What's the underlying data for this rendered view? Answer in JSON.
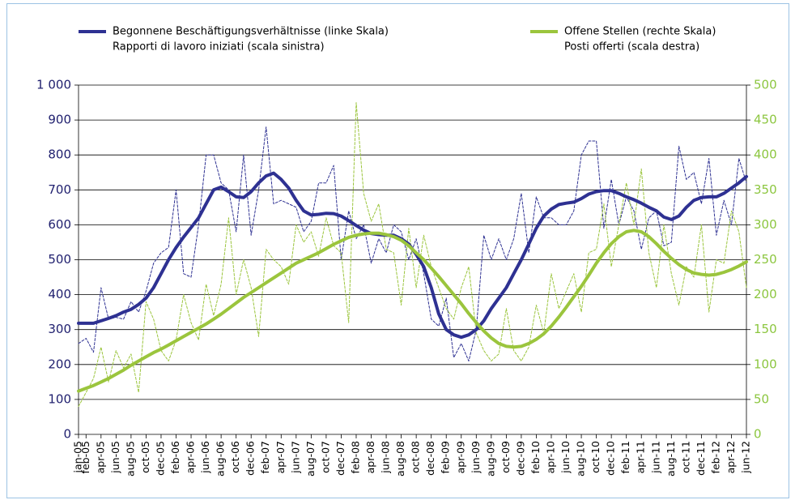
{
  "chart_data": {
    "type": "line",
    "categories": [
      "jan-05",
      "feb-05",
      null,
      "apr-05",
      null,
      "jun-05",
      null,
      "aug-05",
      null,
      "oct-05",
      null,
      "dec-05",
      null,
      "feb-06",
      null,
      "apr-06",
      null,
      "jun-06",
      null,
      "aug-06",
      null,
      "oct-06",
      null,
      "dec-06",
      null,
      "feb-07",
      null,
      "apr-07",
      null,
      "jun-07",
      null,
      "aug-07",
      null,
      "oct-07",
      null,
      "dec-07",
      null,
      "feb-08",
      null,
      "apr-08",
      null,
      "jun-08",
      null,
      "aug-08",
      null,
      "oct-08",
      null,
      "dec-08",
      null,
      "feb-09",
      null,
      "apr-09",
      null,
      "jun-09",
      null,
      "aug-09",
      null,
      "oct-09",
      null,
      "dec-09",
      null,
      "feb-10",
      null,
      "apr-10",
      null,
      "jun-10",
      null,
      "aug-10",
      null,
      "oct-10",
      null,
      "dec-10",
      null,
      "feb-11",
      null,
      "apr-11",
      null,
      "jun-11",
      null,
      "aug-11",
      null,
      "oct-11",
      null,
      "dec-11",
      null,
      "feb-12",
      null,
      "apr-12",
      null,
      "jun-12"
    ],
    "series": [
      {
        "name": [
          "Begonnene Beschäftigungsverhältnisse (linke Skala)",
          "Rapporti di lavoro iniziati (scala sinistra)"
        ],
        "color": "#2e3192",
        "axis": "y",
        "dashed": false,
        "values": [
          318,
          318,
          318,
          325,
          332,
          340,
          350,
          358,
          372,
          390,
          420,
          460,
          500,
          535,
          565,
          592,
          620,
          660,
          700,
          708,
          695,
          680,
          678,
          695,
          720,
          740,
          748,
          730,
          705,
          670,
          640,
          628,
          630,
          633,
          632,
          625,
          612,
          598,
          585,
          575,
          572,
          570,
          570,
          560,
          545,
          515,
          480,
          420,
          345,
          300,
          285,
          278,
          285,
          300,
          325,
          360,
          390,
          420,
          460,
          500,
          545,
          590,
          625,
          645,
          658,
          662,
          665,
          675,
          688,
          695,
          698,
          698,
          690,
          680,
          672,
          662,
          650,
          640,
          622,
          615,
          625,
          650,
          670,
          678,
          680,
          680,
          690,
          705,
          720,
          738
        ]
      },
      {
        "color": "#2e3192",
        "axis": "y",
        "dashed": true,
        "values": [
          260,
          275,
          235,
          420,
          330,
          335,
          330,
          380,
          350,
          410,
          490,
          520,
          535,
          700,
          460,
          450,
          600,
          800,
          800,
          720,
          700,
          580,
          800,
          570,
          700,
          880,
          660,
          670,
          660,
          650,
          580,
          610,
          720,
          720,
          770,
          500,
          640,
          560,
          600,
          490,
          560,
          520,
          600,
          580,
          500,
          560,
          460,
          330,
          310,
          390,
          220,
          260,
          210,
          300,
          570,
          500,
          560,
          500,
          560,
          690,
          520,
          680,
          620,
          620,
          600,
          600,
          640,
          800,
          840,
          840,
          590,
          730,
          600,
          680,
          640,
          530,
          620,
          640,
          540,
          550,
          825,
          730,
          750,
          660,
          790,
          570,
          670,
          600,
          790,
          720
        ]
      },
      {
        "name": [
          "Offene Stellen (rechte Skala)",
          "Posti offerti (scala destra)"
        ],
        "color": "#9bc53d",
        "axis": "y2",
        "dashed": false,
        "values": [
          62,
          66,
          70,
          75,
          80,
          86,
          92,
          99,
          105,
          111,
          117,
          122,
          128,
          134,
          140,
          146,
          152,
          158,
          165,
          172,
          180,
          188,
          196,
          203,
          210,
          217,
          224,
          231,
          238,
          245,
          250,
          255,
          260,
          266,
          272,
          277,
          282,
          285,
          287,
          288,
          288,
          286,
          283,
          278,
          270,
          260,
          250,
          238,
          226,
          213,
          200,
          187,
          173,
          160,
          148,
          138,
          130,
          126,
          125,
          126,
          130,
          136,
          144,
          155,
          168,
          182,
          197,
          212,
          228,
          245,
          260,
          273,
          283,
          290,
          292,
          290,
          283,
          273,
          262,
          252,
          243,
          236,
          231,
          229,
          228,
          229,
          232,
          236,
          241,
          247
        ]
      },
      {
        "color": "#9bc53d",
        "axis": "y2",
        "dashed": true,
        "values": [
          40,
          60,
          80,
          125,
          75,
          120,
          95,
          115,
          60,
          190,
          165,
          120,
          105,
          135,
          200,
          160,
          135,
          215,
          170,
          215,
          310,
          200,
          250,
          210,
          140,
          265,
          250,
          240,
          215,
          300,
          275,
          290,
          255,
          310,
          270,
          260,
          160,
          475,
          345,
          305,
          330,
          265,
          260,
          185,
          295,
          210,
          285,
          240,
          210,
          180,
          165,
          210,
          240,
          145,
          120,
          105,
          115,
          180,
          120,
          105,
          125,
          185,
          145,
          230,
          180,
          205,
          230,
          175,
          260,
          265,
          330,
          240,
          300,
          360,
          300,
          380,
          260,
          210,
          300,
          230,
          185,
          240,
          225,
          300,
          175,
          250,
          245,
          320,
          290,
          210
        ]
      }
    ],
    "ylim": [
      0,
      1000
    ],
    "yticks": [
      0,
      100,
      200,
      300,
      400,
      500,
      600,
      700,
      800,
      900,
      {
        "value": 1000,
        "label": "1 000"
      }
    ],
    "y2lim": [
      0,
      500
    ],
    "y2ticks": [
      0,
      50,
      100,
      150,
      200,
      250,
      300,
      350,
      400,
      450,
      500
    ],
    "grid": true
  }
}
